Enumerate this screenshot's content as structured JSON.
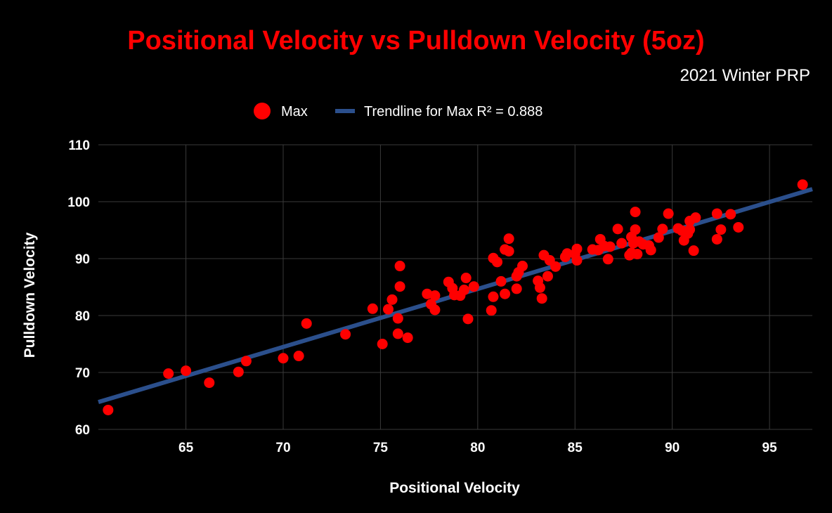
{
  "colors": {
    "background": "#000000",
    "title": "#ff0000",
    "point": "#ff0000",
    "trendline": "#2b4f8c",
    "grid": "#3a3a3a",
    "text": "#ffffff"
  },
  "chart_data": {
    "type": "scatter",
    "title": "Positional Velocity vs Pulldown Velocity (5oz)",
    "subtitle": "2021 Winter PRP",
    "xlabel": "Positional Velocity",
    "ylabel": "Pulldown Velocity",
    "xlim": [
      60.5,
      97.2
    ],
    "ylim": [
      60,
      110
    ],
    "xticks": [
      "65",
      "70",
      "75",
      "80",
      "85",
      "90",
      "95"
    ],
    "yticks": [
      "60",
      "70",
      "80",
      "90",
      "100",
      "110"
    ],
    "grid": true,
    "legend_position": "top",
    "legend": {
      "series_label": "Max",
      "trendline_label": "Trendline for Max R² = 0.888"
    },
    "trendline": {
      "x": [
        60.5,
        97.2
      ],
      "y": [
        64.8,
        102.2
      ]
    },
    "series": [
      {
        "name": "Max",
        "points": [
          [
            61.0,
            63.4
          ],
          [
            64.1,
            69.8
          ],
          [
            65.0,
            70.3
          ],
          [
            66.2,
            68.2
          ],
          [
            67.7,
            70.1
          ],
          [
            68.1,
            72.0
          ],
          [
            70.0,
            72.5
          ],
          [
            70.8,
            72.9
          ],
          [
            71.2,
            78.6
          ],
          [
            73.2,
            76.7
          ],
          [
            74.6,
            81.2
          ],
          [
            75.1,
            75.0
          ],
          [
            75.4,
            81.1
          ],
          [
            75.6,
            82.8
          ],
          [
            75.9,
            79.5
          ],
          [
            75.9,
            76.8
          ],
          [
            76.0,
            88.7
          ],
          [
            76.0,
            85.1
          ],
          [
            76.4,
            76.1
          ],
          [
            77.4,
            83.8
          ],
          [
            77.6,
            82.0
          ],
          [
            77.8,
            81.0
          ],
          [
            77.8,
            83.5
          ],
          [
            78.5,
            85.9
          ],
          [
            78.7,
            84.8
          ],
          [
            78.8,
            83.6
          ],
          [
            79.1,
            83.5
          ],
          [
            79.3,
            84.5
          ],
          [
            79.4,
            86.6
          ],
          [
            79.5,
            79.4
          ],
          [
            79.8,
            85.1
          ],
          [
            80.7,
            80.9
          ],
          [
            80.8,
            83.3
          ],
          [
            80.8,
            90.1
          ],
          [
            81.0,
            89.4
          ],
          [
            81.2,
            86.0
          ],
          [
            81.4,
            83.8
          ],
          [
            81.4,
            91.6
          ],
          [
            81.6,
            93.5
          ],
          [
            81.6,
            91.3
          ],
          [
            82.0,
            84.7
          ],
          [
            82.0,
            86.9
          ],
          [
            82.1,
            87.6
          ],
          [
            82.3,
            88.7
          ],
          [
            83.1,
            86.1
          ],
          [
            83.2,
            84.9
          ],
          [
            83.3,
            83.0
          ],
          [
            83.4,
            90.6
          ],
          [
            83.6,
            86.9
          ],
          [
            83.7,
            89.7
          ],
          [
            84.0,
            88.6
          ],
          [
            84.5,
            90.3
          ],
          [
            84.6,
            90.9
          ],
          [
            85.0,
            90.8
          ],
          [
            85.1,
            91.7
          ],
          [
            85.1,
            89.7
          ],
          [
            85.9,
            91.6
          ],
          [
            86.2,
            91.5
          ],
          [
            86.3,
            93.4
          ],
          [
            86.5,
            92.2
          ],
          [
            86.7,
            89.9
          ],
          [
            86.8,
            92.1
          ],
          [
            87.2,
            95.2
          ],
          [
            87.4,
            92.7
          ],
          [
            87.8,
            90.6
          ],
          [
            87.9,
            93.8
          ],
          [
            87.9,
            91.0
          ],
          [
            88.0,
            92.7
          ],
          [
            88.1,
            98.2
          ],
          [
            88.1,
            95.1
          ],
          [
            88.2,
            90.8
          ],
          [
            88.3,
            93.0
          ],
          [
            88.5,
            92.5
          ],
          [
            88.8,
            92.3
          ],
          [
            88.9,
            91.5
          ],
          [
            89.3,
            93.7
          ],
          [
            89.5,
            95.2
          ],
          [
            89.8,
            97.9
          ],
          [
            90.3,
            95.3
          ],
          [
            90.5,
            94.9
          ],
          [
            90.6,
            93.2
          ],
          [
            90.8,
            94.4
          ],
          [
            90.9,
            96.6
          ],
          [
            90.9,
            95.1
          ],
          [
            91.2,
            97.2
          ],
          [
            91.1,
            91.4
          ],
          [
            92.3,
            97.9
          ],
          [
            92.3,
            93.4
          ],
          [
            92.5,
            95.1
          ],
          [
            93.0,
            97.8
          ],
          [
            93.4,
            95.5
          ],
          [
            96.7,
            103.0
          ]
        ]
      }
    ]
  }
}
